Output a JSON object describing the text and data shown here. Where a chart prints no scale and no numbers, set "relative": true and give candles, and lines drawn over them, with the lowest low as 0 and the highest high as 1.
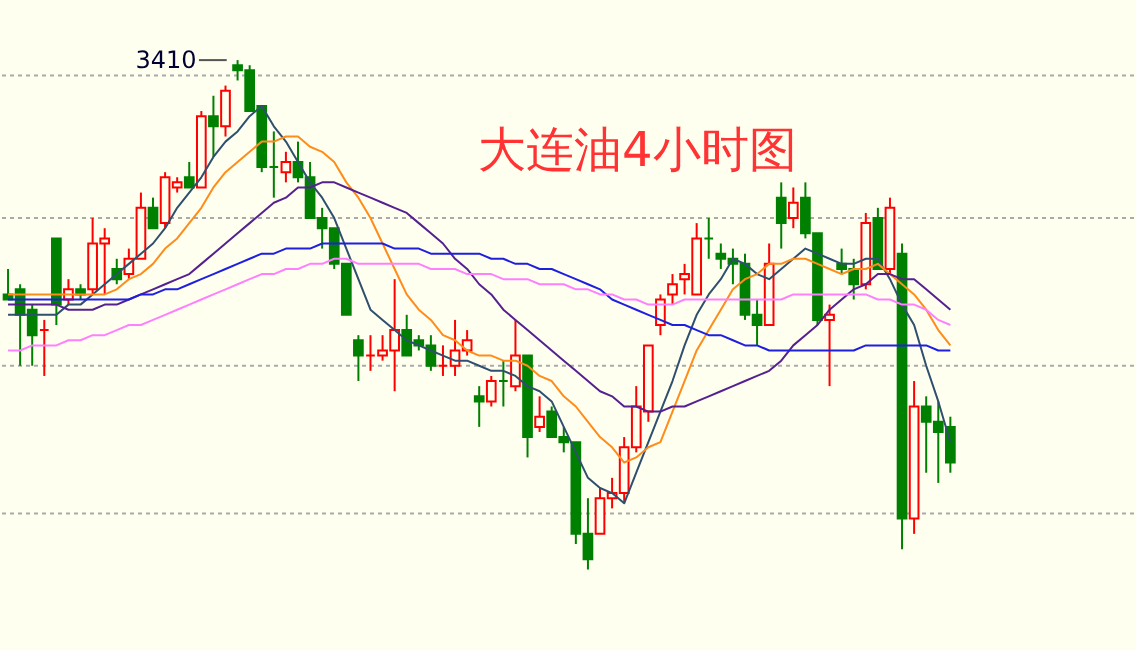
{
  "chart_data": {
    "type": "candlestick",
    "title": "大连油4小时图",
    "relative": true,
    "ref_lines": [
      {
        "axis": "y",
        "value": 0.97,
        "color": "#aaaaaa",
        "line_style": "dotted"
      },
      {
        "axis": "y",
        "value": 0.69,
        "color": "#aaaaaa",
        "line_style": "dotted"
      },
      {
        "axis": "y",
        "value": 0.4,
        "color": "#aaaaaa",
        "line_style": "dotted"
      },
      {
        "axis": "y",
        "value": 0.11,
        "color": "#aaaaaa",
        "line_style": "dotted"
      }
    ],
    "annotations": [
      "3410"
    ],
    "categories": [
      null,
      null,
      null,
      null,
      null,
      null,
      null,
      null,
      null,
      null,
      null,
      null,
      null,
      null,
      null,
      null,
      null,
      null,
      null,
      null,
      null,
      null,
      null,
      null,
      null,
      null,
      null,
      null,
      null,
      null,
      null,
      null,
      null,
      null,
      null,
      null,
      null,
      null,
      null,
      null,
      null,
      null,
      null,
      null,
      null,
      null,
      null,
      null,
      null,
      null,
      null,
      null,
      null,
      null,
      null,
      null,
      null,
      null,
      null,
      null,
      null,
      null,
      null,
      null,
      null,
      null,
      null,
      null,
      null,
      null,
      null,
      null,
      null,
      null,
      null,
      null,
      null,
      null,
      null
    ],
    "ohlc": [
      [
        0.54,
        0.59,
        0.53,
        0.53
      ],
      [
        0.55,
        0.56,
        0.4,
        0.5
      ],
      [
        0.51,
        0.52,
        0.4,
        0.46
      ],
      [
        0.47,
        0.49,
        0.38,
        0.47
      ],
      [
        0.65,
        0.65,
        0.48,
        0.52
      ],
      [
        0.53,
        0.57,
        0.52,
        0.55
      ],
      [
        0.55,
        0.56,
        0.53,
        0.54
      ],
      [
        0.55,
        0.69,
        0.54,
        0.64
      ],
      [
        0.64,
        0.67,
        0.54,
        0.65
      ],
      [
        0.59,
        0.61,
        0.56,
        0.57
      ],
      [
        0.58,
        0.63,
        0.57,
        0.61
      ],
      [
        0.61,
        0.74,
        0.61,
        0.71
      ],
      [
        0.71,
        0.73,
        0.67,
        0.67
      ],
      [
        0.68,
        0.78,
        0.67,
        0.77
      ],
      [
        0.75,
        0.77,
        0.74,
        0.76
      ],
      [
        0.77,
        0.8,
        0.75,
        0.75
      ],
      [
        0.75,
        0.9,
        0.75,
        0.89
      ],
      [
        0.89,
        0.93,
        0.81,
        0.87
      ],
      [
        0.87,
        0.95,
        0.85,
        0.94
      ],
      [
        0.99,
        1.0,
        0.96,
        0.98
      ],
      [
        0.98,
        0.99,
        0.9,
        0.9
      ],
      [
        0.91,
        0.91,
        0.78,
        0.79
      ],
      [
        0.79,
        0.86,
        0.73,
        0.79
      ],
      [
        0.78,
        0.82,
        0.76,
        0.8
      ],
      [
        0.8,
        0.84,
        0.76,
        0.77
      ],
      [
        0.77,
        0.8,
        0.69,
        0.69
      ],
      [
        0.69,
        0.71,
        0.63,
        0.67
      ],
      [
        0.67,
        0.67,
        0.59,
        0.6
      ],
      [
        0.6,
        0.6,
        0.5,
        0.5
      ],
      [
        0.45,
        0.46,
        0.37,
        0.42
      ],
      [
        0.42,
        0.46,
        0.39,
        0.42
      ],
      [
        0.42,
        0.46,
        0.41,
        0.43
      ],
      [
        0.43,
        0.57,
        0.35,
        0.47
      ],
      [
        0.47,
        0.5,
        0.42,
        0.42
      ],
      [
        0.45,
        0.46,
        0.43,
        0.44
      ],
      [
        0.44,
        0.46,
        0.39,
        0.4
      ],
      [
        0.4,
        0.44,
        0.38,
        0.4
      ],
      [
        0.4,
        0.49,
        0.38,
        0.43
      ],
      [
        0.43,
        0.47,
        0.42,
        0.45
      ],
      [
        0.34,
        0.36,
        0.28,
        0.33
      ],
      [
        0.33,
        0.38,
        0.32,
        0.37
      ],
      [
        0.37,
        0.41,
        0.32,
        0.37
      ],
      [
        0.36,
        0.49,
        0.35,
        0.42
      ],
      [
        0.42,
        0.42,
        0.22,
        0.26
      ],
      [
        0.28,
        0.34,
        0.27,
        0.3
      ],
      [
        0.31,
        0.32,
        0.26,
        0.26
      ],
      [
        0.26,
        0.28,
        0.23,
        0.25
      ],
      [
        0.25,
        0.25,
        0.05,
        0.07
      ],
      [
        0.07,
        0.14,
        0,
        0.02
      ],
      [
        0.07,
        0.16,
        0.07,
        0.14
      ],
      [
        0.14,
        0.18,
        0.12,
        0.15
      ],
      [
        0.15,
        0.26,
        0.13,
        0.24
      ],
      [
        0.24,
        0.36,
        0.23,
        0.32
      ],
      [
        0.31,
        0.44,
        0.29,
        0.44
      ],
      [
        0.48,
        0.54,
        0.46,
        0.53
      ],
      [
        0.54,
        0.58,
        0.52,
        0.56
      ],
      [
        0.57,
        0.6,
        0.54,
        0.58
      ],
      [
        0.54,
        0.68,
        0.54,
        0.65
      ],
      [
        0.65,
        0.69,
        0.61,
        0.65
      ],
      [
        0.62,
        0.64,
        0.59,
        0.61
      ],
      [
        0.61,
        0.63,
        0.56,
        0.6
      ],
      [
        0.6,
        0.62,
        0.49,
        0.5
      ],
      [
        0.5,
        0.53,
        0.44,
        0.48
      ],
      [
        0.48,
        0.64,
        0.48,
        0.6
      ],
      [
        0.73,
        0.76,
        0.63,
        0.68
      ],
      [
        0.69,
        0.75,
        0.67,
        0.72
      ],
      [
        0.73,
        0.76,
        0.65,
        0.66
      ],
      [
        0.66,
        0.66,
        0.48,
        0.49
      ],
      [
        0.49,
        0.52,
        0.36,
        0.5
      ],
      [
        0.6,
        0.63,
        0.58,
        0.59
      ],
      [
        0.59,
        0.61,
        0.53,
        0.56
      ],
      [
        0.56,
        0.7,
        0.55,
        0.68
      ],
      [
        0.69,
        0.71,
        0.59,
        0.59
      ],
      [
        0.59,
        0.73,
        0.58,
        0.71
      ],
      [
        0.62,
        0.64,
        0.04,
        0.1
      ],
      [
        0.1,
        0.37,
        0.07,
        0.32
      ],
      [
        0.32,
        0.34,
        0.19,
        0.29
      ],
      [
        0.29,
        0.33,
        0.17,
        0.27
      ],
      [
        0.28,
        0.3,
        0.19,
        0.21
      ]
    ],
    "colors": [
      "#008000",
      "#008000",
      "#008000",
      "#ff0000",
      "#008000",
      "#ff0000",
      "#008000",
      "#ff0000",
      "#ff0000",
      "#008000",
      "#ff0000",
      "#ff0000",
      "#008000",
      "#ff0000",
      "#ff0000",
      "#008000",
      "#ff0000",
      "#008000",
      "#ff0000",
      "#008000",
      "#008000",
      "#008000",
      "#008000",
      "#ff0000",
      "#008000",
      "#008000",
      "#008000",
      "#008000",
      "#008000",
      "#008000",
      "#ff0000",
      "#ff0000",
      "#ff0000",
      "#008000",
      "#008000",
      "#008000",
      "#ff0000",
      "#ff0000",
      "#ff0000",
      "#008000",
      "#ff0000",
      "#008000",
      "#ff0000",
      "#008000",
      "#ff0000",
      "#008000",
      "#008000",
      "#008000",
      "#008000",
      "#ff0000",
      "#ff0000",
      "#ff0000",
      "#ff0000",
      "#ff0000",
      "#ff0000",
      "#ff0000",
      "#ff0000",
      "#ff0000",
      "#008000",
      "#008000",
      "#008000",
      "#008000",
      "#008000",
      "#ff0000",
      "#008000",
      "#ff0000",
      "#008000",
      "#008000",
      "#ff0000",
      "#008000",
      "#008000",
      "#ff0000",
      "#008000",
      "#ff0000",
      "#008000",
      "#ff0000",
      "#008000",
      "#008000",
      "#008000"
    ],
    "series": [
      {
        "type": "line",
        "color": "#2f4f6f",
        "values": [
          0.5,
          0.5,
          0.5,
          0.5,
          0.5,
          0.52,
          0.52,
          0.54,
          0.56,
          0.58,
          0.6,
          0.62,
          0.64,
          0.67,
          0.71,
          0.74,
          0.77,
          0.81,
          0.84,
          0.86,
          0.89,
          0.91,
          0.87,
          0.84,
          0.8,
          0.76,
          0.73,
          0.69,
          0.63,
          0.57,
          0.51,
          0.49,
          0.47,
          0.45,
          0.44,
          0.43,
          0.42,
          0.41,
          0.41,
          0.4,
          0.39,
          0.39,
          0.38,
          0.36,
          0.35,
          0.33,
          0.28,
          0.23,
          0.18,
          0.16,
          0.15,
          0.13,
          0.19,
          0.25,
          0.31,
          0.37,
          0.44,
          0.5,
          0.54,
          0.57,
          0.61,
          0.6,
          0.58,
          0.57,
          0.59,
          0.61,
          0.63,
          0.62,
          0.61,
          0.6,
          0.6,
          0.61,
          0.61,
          0.57,
          0.52,
          0.48,
          0.4,
          0.33,
          0.25
        ]
      },
      {
        "type": "line",
        "color": "#ff8c1a",
        "values": [
          0.54,
          0.54,
          0.54,
          0.54,
          0.54,
          0.54,
          0.54,
          0.54,
          0.54,
          0.55,
          0.57,
          0.58,
          0.6,
          0.63,
          0.65,
          0.68,
          0.71,
          0.75,
          0.78,
          0.8,
          0.82,
          0.84,
          0.84,
          0.85,
          0.85,
          0.83,
          0.82,
          0.8,
          0.76,
          0.73,
          0.69,
          0.64,
          0.59,
          0.54,
          0.51,
          0.49,
          0.46,
          0.45,
          0.43,
          0.42,
          0.42,
          0.41,
          0.41,
          0.4,
          0.38,
          0.37,
          0.34,
          0.32,
          0.29,
          0.26,
          0.24,
          0.21,
          0.22,
          0.24,
          0.25,
          0.31,
          0.37,
          0.43,
          0.47,
          0.51,
          0.55,
          0.57,
          0.58,
          0.6,
          0.6,
          0.61,
          0.61,
          0.6,
          0.59,
          0.58,
          0.59,
          0.59,
          0.6,
          0.58,
          0.56,
          0.54,
          0.51,
          0.47,
          0.44
        ]
      },
      {
        "type": "line",
        "color": "#55208f",
        "values": [
          0.52,
          0.52,
          0.52,
          0.52,
          0.52,
          0.51,
          0.51,
          0.51,
          0.52,
          0.52,
          0.53,
          0.54,
          0.55,
          0.56,
          0.57,
          0.58,
          0.6,
          0.62,
          0.64,
          0.66,
          0.68,
          0.7,
          0.72,
          0.73,
          0.75,
          0.75,
          0.76,
          0.76,
          0.75,
          0.74,
          0.73,
          0.72,
          0.71,
          0.7,
          0.68,
          0.66,
          0.64,
          0.61,
          0.59,
          0.56,
          0.54,
          0.51,
          0.49,
          0.47,
          0.45,
          0.43,
          0.41,
          0.39,
          0.37,
          0.35,
          0.34,
          0.32,
          0.32,
          0.31,
          0.31,
          0.32,
          0.32,
          0.33,
          0.34,
          0.35,
          0.36,
          0.37,
          0.38,
          0.39,
          0.41,
          0.44,
          0.46,
          0.48,
          0.51,
          0.53,
          0.55,
          0.56,
          0.58,
          0.58,
          0.57,
          0.57,
          0.55,
          0.53,
          0.51
        ]
      },
      {
        "type": "line",
        "color": "#1f1fe0",
        "values": [
          0.53,
          0.53,
          0.53,
          0.53,
          0.53,
          0.53,
          0.53,
          0.53,
          0.53,
          0.53,
          0.53,
          0.54,
          0.54,
          0.55,
          0.55,
          0.56,
          0.57,
          0.58,
          0.59,
          0.6,
          0.61,
          0.62,
          0.62,
          0.63,
          0.63,
          0.63,
          0.64,
          0.64,
          0.64,
          0.64,
          0.64,
          0.64,
          0.63,
          0.63,
          0.63,
          0.62,
          0.62,
          0.62,
          0.62,
          0.62,
          0.61,
          0.61,
          0.6,
          0.6,
          0.59,
          0.59,
          0.58,
          0.57,
          0.56,
          0.55,
          0.53,
          0.52,
          0.51,
          0.5,
          0.49,
          0.48,
          0.48,
          0.47,
          0.46,
          0.46,
          0.45,
          0.44,
          0.44,
          0.43,
          0.43,
          0.43,
          0.43,
          0.43,
          0.43,
          0.43,
          0.43,
          0.44,
          0.44,
          0.44,
          0.44,
          0.44,
          0.44,
          0.43,
          0.43
        ]
      },
      {
        "type": "line",
        "color": "#ff80ff",
        "values": [
          0.43,
          0.43,
          0.44,
          0.44,
          0.44,
          0.45,
          0.45,
          0.46,
          0.46,
          0.47,
          0.48,
          0.48,
          0.49,
          0.5,
          0.51,
          0.52,
          0.53,
          0.54,
          0.55,
          0.56,
          0.57,
          0.58,
          0.58,
          0.59,
          0.59,
          0.6,
          0.6,
          0.61,
          0.61,
          0.6,
          0.6,
          0.6,
          0.6,
          0.6,
          0.6,
          0.59,
          0.59,
          0.59,
          0.58,
          0.58,
          0.58,
          0.57,
          0.57,
          0.57,
          0.56,
          0.56,
          0.56,
          0.55,
          0.55,
          0.54,
          0.54,
          0.53,
          0.53,
          0.52,
          0.52,
          0.52,
          0.53,
          0.53,
          0.53,
          0.53,
          0.53,
          0.53,
          0.53,
          0.53,
          0.53,
          0.54,
          0.54,
          0.54,
          0.54,
          0.54,
          0.54,
          0.54,
          0.53,
          0.53,
          0.52,
          0.52,
          0.51,
          0.49,
          0.48
        ]
      }
    ]
  }
}
